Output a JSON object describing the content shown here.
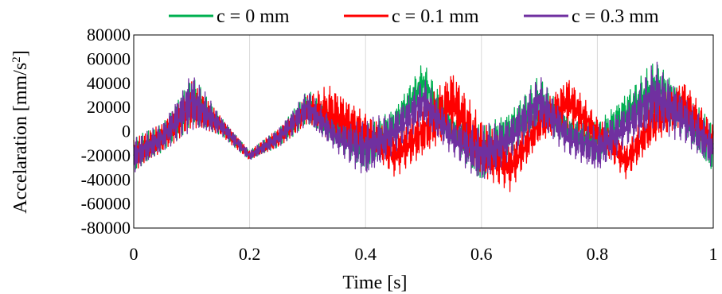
{
  "chart_data": {
    "type": "line",
    "title": "",
    "xlabel": "Time [s]",
    "ylabel_main": "Accelaration [mm/s",
    "ylabel_sup": "2",
    "ylabel_end": "]",
    "xlim": [
      0,
      1
    ],
    "ylim": [
      -80000,
      80000
    ],
    "x_ticks": [
      0,
      0.2,
      0.4,
      0.6,
      0.8,
      1
    ],
    "x_tick_labels": [
      "0",
      "0.2",
      "0.4",
      "0.6",
      "0.8",
      "1"
    ],
    "y_ticks": [
      80000,
      60000,
      40000,
      20000,
      0,
      -20000,
      -40000,
      -60000,
      -80000
    ],
    "y_tick_labels": [
      "80000",
      "60000",
      "40000",
      "20000",
      "0",
      "-20000",
      "-40000",
      "-60000",
      "-80000"
    ],
    "grid": {
      "vertical": true,
      "horizontal": false
    },
    "legend_position": "top",
    "series": [
      {
        "name": "c = 0 mm",
        "color": "#00b050",
        "x": [
          0,
          0.05,
          0.1,
          0.15,
          0.2,
          0.25,
          0.3,
          0.35,
          0.4,
          0.45,
          0.5,
          0.55,
          0.6,
          0.65,
          0.7,
          0.75,
          0.8,
          0.85,
          0.9,
          0.95,
          1
        ],
        "y": [
          -20000,
          -5000,
          25000,
          5000,
          -20000,
          -5000,
          20000,
          0,
          -15000,
          5000,
          40000,
          0,
          -20000,
          0,
          25000,
          0,
          -10000,
          15000,
          35000,
          15000,
          -15000
        ],
        "amplitude": [
          15000,
          12000,
          22000,
          8000,
          4000,
          8000,
          15000,
          12000,
          20000,
          15000,
          18000,
          12000,
          25000,
          18000,
          22000,
          12000,
          18000,
          18000,
          25000,
          18000,
          22000
        ]
      },
      {
        "name": "c = 0.1 mm",
        "color": "#ff0000",
        "x": [
          0,
          0.05,
          0.1,
          0.15,
          0.2,
          0.25,
          0.3,
          0.34,
          0.4,
          0.45,
          0.5,
          0.55,
          0.6,
          0.65,
          0.7,
          0.75,
          0.8,
          0.85,
          0.9,
          0.95,
          1
        ],
        "y": [
          -20000,
          -5000,
          22000,
          5000,
          -20000,
          -5000,
          18000,
          15000,
          0,
          -20000,
          0,
          25000,
          -15000,
          -30000,
          5000,
          25000,
          0,
          -25000,
          10000,
          25000,
          -10000
        ],
        "amplitude": [
          14000,
          12000,
          20000,
          8000,
          4000,
          8000,
          12000,
          25000,
          15000,
          18000,
          22000,
          28000,
          25000,
          20000,
          15000,
          22000,
          12000,
          15000,
          20000,
          18000,
          15000
        ]
      },
      {
        "name": "c = 0.3 mm",
        "color": "#7030a0",
        "x": [
          0,
          0.05,
          0.1,
          0.15,
          0.2,
          0.25,
          0.3,
          0.35,
          0.4,
          0.45,
          0.5,
          0.55,
          0.6,
          0.65,
          0.7,
          0.75,
          0.8,
          0.85,
          0.9,
          0.95,
          1
        ],
        "y": [
          -20000,
          -5000,
          25000,
          5000,
          -20000,
          -5000,
          20000,
          -5000,
          -15000,
          0,
          25000,
          -5000,
          -20000,
          -5000,
          25000,
          -5000,
          -15000,
          5000,
          30000,
          10000,
          -15000
        ],
        "amplitude": [
          15000,
          12000,
          25000,
          8000,
          4000,
          8000,
          15000,
          12000,
          25000,
          18000,
          20000,
          15000,
          25000,
          18000,
          22000,
          15000,
          20000,
          18000,
          30000,
          20000,
          18000
        ]
      }
    ]
  }
}
